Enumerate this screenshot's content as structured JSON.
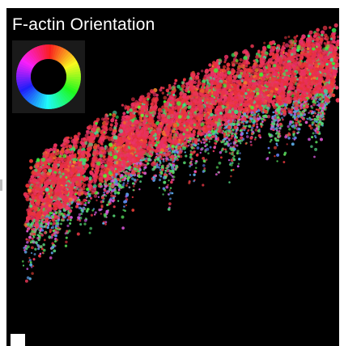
{
  "title": "F-actin Orientation",
  "colors": {
    "background": "#000000",
    "frame": "#ffffff",
    "title_text": "#ffffff",
    "primary_filaments": "#e8355f",
    "secondary_filaments": [
      "#5fd36a",
      "#6fa3e8",
      "#c05ad8",
      "#e07a3a"
    ]
  },
  "legend": {
    "type": "orientation-color-wheel",
    "hue_ring": [
      "#ff0000",
      "#ffff00",
      "#00ff00",
      "#00ffff",
      "#0000ff",
      "#ff00ff",
      "#ff0000"
    ]
  }
}
